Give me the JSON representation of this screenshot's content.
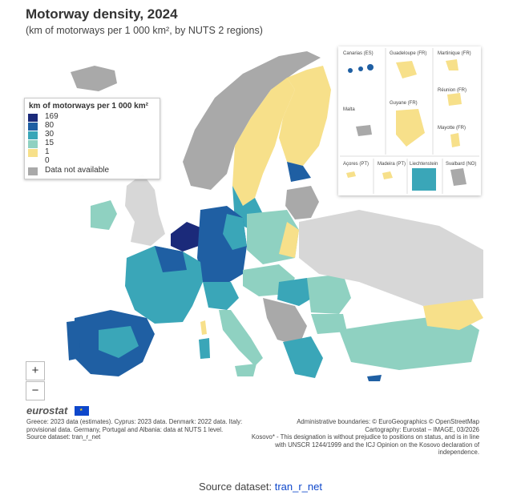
{
  "header": {
    "title": "Motorway density, 2024",
    "subtitle": "(km of motorways per 1 000 km², by NUTS 2 regions)"
  },
  "legend": {
    "title": "km of motorways per 1 000 km²",
    "items": [
      {
        "label": "169",
        "color": "#1b2a7a"
      },
      {
        "label": "80",
        "color": "#1f5fa3"
      },
      {
        "label": "30",
        "color": "#3aa6b8"
      },
      {
        "label": "15",
        "color": "#8fd1c1"
      },
      {
        "label": "1",
        "color": "#f7e08a"
      },
      {
        "label": "0",
        "color": "#f7e08a"
      },
      {
        "label": "Data not available",
        "color": "#a9a9a9"
      }
    ]
  },
  "insets": [
    {
      "label": "Canarias (ES)"
    },
    {
      "label": "Guadeloupe (FR)"
    },
    {
      "label": "Martinique (FR)"
    },
    {
      "label": "Réunion (FR)"
    },
    {
      "label": "Guyane (FR)"
    },
    {
      "label": "Malta"
    },
    {
      "label": "Mayotte (FR)"
    },
    {
      "label": "Açores (PT)"
    },
    {
      "label": "Madeira (PT)"
    },
    {
      "label": "Liechtenstein"
    },
    {
      "label": "Svalbard (NO)"
    }
  ],
  "zoom": {
    "in": "+",
    "out": "−"
  },
  "logo": "eurostat",
  "notes": {
    "left": "Greece: 2023 data (estimates). Cyprus: 2023 data. Denmark: 2022 data. Italy: provisional data. Germany, Portugal and Albania: data at NUTS 1 level.",
    "left_source": "Source dataset: tran_r_net",
    "right_1": "Administrative boundaries: © EuroGeographics © OpenStreetMap",
    "right_2": "Cartography: Eurostat – IMAGE, 03/2026",
    "right_3": "Kosovo* - This designation is without prejudice to positions on status, and is in line with UNSCR 1244/1999 and the ICJ Opinion on the Kosovo declaration of independence."
  },
  "source": {
    "prefix": "Source dataset: ",
    "link": "tran_r_net"
  }
}
